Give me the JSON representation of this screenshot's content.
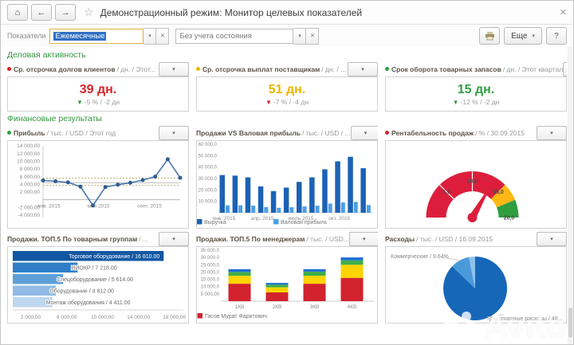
{
  "window": {
    "title": "Демонстрационный режим: Монитор целевых показателей",
    "home_icon": "⌂",
    "back_icon": "←",
    "forward_icon": "→",
    "star_icon": "☆",
    "close_icon": "✕"
  },
  "toolbar": {
    "indicators_label": "Показатели",
    "period_value": "Ежемесячные",
    "state_value": "Без учета состояния",
    "combo_arrow_icon": "▾",
    "combo_clear_icon": "✕",
    "more_label": "Еще",
    "more_arrow_icon": "▾",
    "help_label": "?"
  },
  "sections": {
    "business": "Деловая активность",
    "finance": "Финансовые результаты"
  },
  "kpis": [
    {
      "title": "Ср. отсрочка долгов клиентов",
      "units": "/ дн. / Этот...",
      "value": "39 дн.",
      "delta": "-5 % / -2 дн",
      "arrow": "▼",
      "value_color": "#d8232a",
      "bullet_color": "#d8232a",
      "arrow_color": "#2f9e3f"
    },
    {
      "title": "Ср. отсрочка выплат поставщикам",
      "units": "/ дн. / ...",
      "value": "51 дн.",
      "delta": "-7 % / -4 дн",
      "arrow": "▼",
      "value_color": "#f0b400",
      "bullet_color": "#f0b400",
      "arrow_color": "#d8232a"
    },
    {
      "title": "Срок оборота товарных запасов",
      "units": "/ дн. / Этот квартал",
      "value": "15 дн.",
      "delta": "-12 % / -2 дн",
      "arrow": "▼",
      "value_color": "#2f9e3f",
      "bullet_color": "#2f9e3f",
      "arrow_color": "#2f9e3f"
    }
  ],
  "panels": [
    {
      "title": "Прибыль",
      "units": "/ тыс. / USD / Этот год",
      "bullet_color": "#2f9e3f",
      "dd_icon": "▾"
    },
    {
      "title": "Продажи VS Валовая прибыль",
      "units": "/ тыс. / USD / ...",
      "dd_icon": "▾"
    },
    {
      "title": "Рентабельность продаж",
      "units": "/ % / 30.09.2015",
      "bullet_color": "#d8232a",
      "dd_icon": "▾"
    },
    {
      "title": "Продажи. ТОП.5 По товарным группам",
      "units": "/ ...",
      "dd_icon": "▾"
    },
    {
      "title": "Продажи. ТОП.5 По менеджерам",
      "units": "/ тыс. / USD...",
      "dd_icon": "▾"
    },
    {
      "title": "Расходы",
      "units": "/ тыс. / USD / 16.09.2015",
      "dd_icon": "▾"
    }
  ],
  "chart_data": [
    {
      "id": "profit",
      "type": "line",
      "title": "Прибыль / тыс. / USD / Этот год",
      "x": [
        "янв. 2015",
        "фев. 2015",
        "мар. 2015",
        "апр. 2015",
        "май 2015",
        "июн. 2015",
        "июл. 2015",
        "авг. 2015",
        "сен. 2015",
        "окт. 2015",
        "ноя. 2015",
        "дек. 2015"
      ],
      "values": [
        5000,
        4800,
        4500,
        3400,
        -1500,
        3300,
        3900,
        4400,
        5100,
        6000,
        10500,
        5700
      ],
      "ylim": [
        -4000,
        14000
      ],
      "y_ticks": [
        {
          "v": 14000,
          "label": "14 000,00"
        },
        {
          "v": 12000,
          "label": "12 000,00"
        },
        {
          "v": 10000,
          "label": "10 000,00"
        },
        {
          "v": 8000,
          "label": "8 000,00"
        },
        {
          "v": 6000,
          "label": "6 000,00"
        },
        {
          "v": 4000,
          "label": "4 000,00"
        },
        {
          "v": 2000,
          "label": "2 000,00"
        },
        {
          "v": -2000,
          "label": "-2 000,00"
        },
        {
          "v": -4000,
          "label": "-4 000,00"
        }
      ],
      "x_ticks": [
        {
          "i": 0,
          "label": "янв. 2015"
        },
        {
          "i": 4,
          "label": "май 2015"
        },
        {
          "i": 8,
          "label": "сент. 2015"
        }
      ],
      "target_lines": [
        {
          "v": 5600,
          "style": "dotted"
        },
        {
          "v": 4400,
          "style": "solid"
        },
        {
          "v": 3700,
          "style": "dotted"
        }
      ],
      "line_color": "#4679b2",
      "marker_color": "#2f5d8f"
    },
    {
      "id": "sales_vs_gross",
      "type": "grouped_bar",
      "title": "Продажи VS Валовая прибыль / тыс. / USD",
      "categories": [
        "янв",
        "фев",
        "мар",
        "апр",
        "май",
        "июн",
        "июл",
        "авг",
        "сен",
        "окт",
        "ноя",
        "дек"
      ],
      "x_ticks": [
        {
          "i": 0,
          "label": "янв. 2015"
        },
        {
          "i": 3,
          "label": "апр. 2015"
        },
        {
          "i": 6,
          "label": "июль 2015"
        },
        {
          "i": 9,
          "label": "окт. 2015"
        }
      ],
      "series": [
        {
          "name": "Выручка",
          "color": "#1b62b5",
          "values": [
            33000,
            32500,
            31000,
            23000,
            19000,
            22000,
            27000,
            31000,
            38000,
            45000,
            49000,
            39000
          ]
        },
        {
          "name": "Валовая прибыль",
          "color": "#4d9fe8",
          "values": [
            6500,
            6500,
            6200,
            5000,
            4300,
            4800,
            5600,
            6200,
            8000,
            9000,
            9500,
            6800
          ]
        }
      ],
      "ylim": [
        0,
        60000
      ],
      "y_ticks": [
        {
          "v": 60000,
          "label": "60 000,0"
        },
        {
          "v": 50000,
          "label": "50 000,0"
        },
        {
          "v": 40000,
          "label": "40 000,0"
        },
        {
          "v": 30000,
          "label": "30 000,0"
        },
        {
          "v": 20000,
          "label": "20 000,0"
        },
        {
          "v": 10000,
          "label": "10 000,0"
        }
      ]
    },
    {
      "id": "margin_gauge",
      "type": "gauge",
      "title": "Рентабельность продаж / % / 30.09.2015",
      "min": 0,
      "max": 20,
      "value": 13.3,
      "ticks": [
        {
          "v": 5,
          "label": "5,0"
        },
        {
          "v": 10,
          "label": "10,0"
        },
        {
          "v": 15,
          "label": "15,0"
        },
        {
          "v": 20,
          "label": "20,0"
        }
      ],
      "zones": [
        {
          "from": 0,
          "to": 15,
          "color": "#dc1e3c"
        },
        {
          "from": 15,
          "to": 17.5,
          "color": "#fdb813"
        },
        {
          "from": 17.5,
          "to": 20,
          "color": "#2f9e3f"
        }
      ],
      "needle_color": "#dc1e3c"
    },
    {
      "id": "top_products",
      "type": "hbar",
      "title": "Продажи. ТОП.5 По товарным группам",
      "items": [
        {
          "label": "Торговое оборудование / 16 810.00",
          "value": 16810,
          "color": "#1257a3",
          "text_inside": true
        },
        {
          "label": "НИОКР / 7 218.00",
          "value": 7218,
          "color": "#2f7ec7"
        },
        {
          "label": "Спецоборудование / 5 614.00",
          "value": 5614,
          "color": "#5f9fd8"
        },
        {
          "label": "Оборудование / 4 812.00",
          "value": 4812,
          "color": "#8fbbe4"
        },
        {
          "label": "Монтаж оборудования / 4 411.00",
          "value": 4411,
          "color": "#bcd7ef"
        }
      ],
      "xlim": [
        0,
        19000
      ],
      "x_ticks": [
        {
          "v": 2000,
          "label": "2 000,00"
        },
        {
          "v": 6000,
          "label": "6 000,00"
        },
        {
          "v": 10000,
          "label": "10 000,00"
        },
        {
          "v": 14000,
          "label": "14 000,00"
        },
        {
          "v": 18000,
          "label": "18 000,00"
        }
      ]
    },
    {
      "id": "top_managers",
      "type": "stacked_bar",
      "title": "Продажи. ТОП.5 По менеджерам / тыс. / USD",
      "categories": [
        "1КВ",
        "2КВ",
        "3КВ",
        "4КВ"
      ],
      "series": [
        {
          "name": "Гасов Мурат Фаритович",
          "color": "#d2232e",
          "values": [
            12000,
            6000,
            12000,
            16000
          ]
        },
        {
          "name": "",
          "color": "#ffd400",
          "values": [
            5500,
            3500,
            5500,
            9000
          ]
        },
        {
          "name": "",
          "color": "#3fae49",
          "values": [
            2600,
            1800,
            2800,
            3000
          ]
        },
        {
          "name": "",
          "color": "#1d6fd1",
          "values": [
            1900,
            1200,
            1700,
            2000
          ]
        }
      ],
      "ylim": [
        0,
        35000
      ],
      "y_ticks": [
        {
          "v": 35000,
          "label": "35 000,0"
        },
        {
          "v": 30000,
          "label": "30 000,0"
        },
        {
          "v": 25000,
          "label": "25 000,0"
        },
        {
          "v": 20000,
          "label": "20 000,0"
        },
        {
          "v": 15000,
          "label": "15 000,0"
        },
        {
          "v": 10000,
          "label": "10 000,0"
        },
        {
          "v": 5000,
          "label": "5 000,00"
        }
      ],
      "legend": [
        {
          "name": "Гасов Мурат Фаритович",
          "color": "#d2232e"
        }
      ]
    },
    {
      "id": "expenses_pie",
      "type": "pie",
      "title": "Расходы / тыс. / USD / 16.09.2015",
      "slices": [
        {
          "name": "Транспортные расходы",
          "label": "Транспортные расходы / 48...",
          "pct": 87.2,
          "color": "#1767b8"
        },
        {
          "name": "Коммерческие",
          "label": "Коммерческие / 9.64%",
          "pct": 9.64,
          "color": "#4a9ada"
        },
        {
          "name": "",
          "label": "",
          "pct": 3.16,
          "color": "#8ec2ec"
        }
      ]
    }
  ],
  "watermark": {
    "text": "Avito"
  }
}
